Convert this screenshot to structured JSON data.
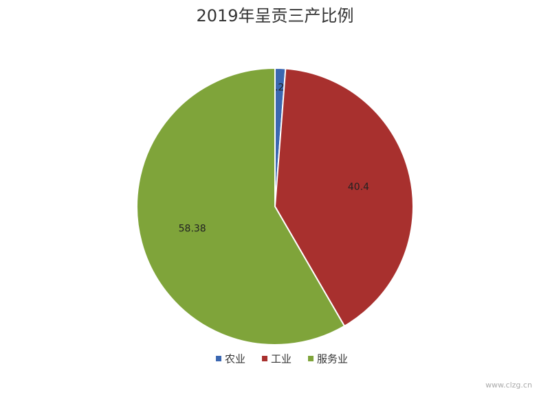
{
  "chart_data": {
    "type": "pie",
    "title": "2019年呈贡三产比例",
    "categories": [
      "农业",
      "工业",
      "服务业"
    ],
    "values": [
      1.22,
      40.4,
      58.38
    ],
    "colors": [
      "#3b67b1",
      "#a8302e",
      "#7fa43a"
    ],
    "legend": "bottom",
    "watermark": "www.clzg.cn"
  }
}
